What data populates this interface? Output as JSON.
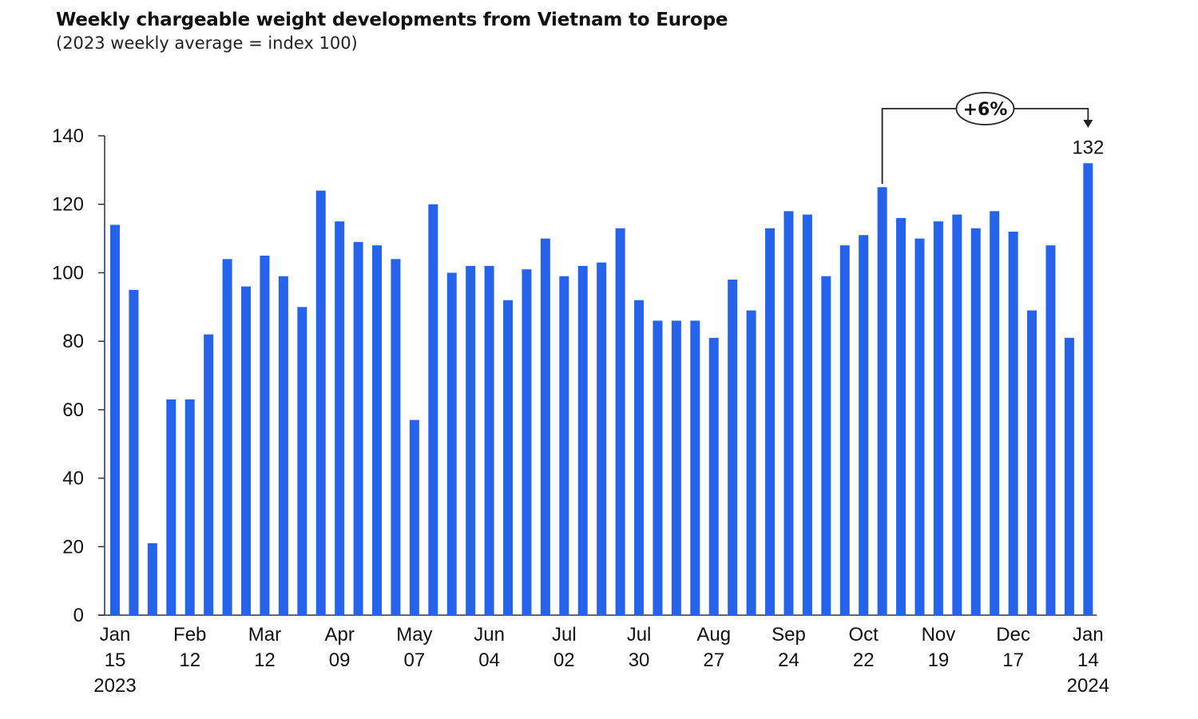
{
  "chart_data": {
    "type": "bar",
    "title": "Weekly chargeable weight developments from Vietnam to Europe",
    "subtitle": "(2023 weekly average = index 100)",
    "xlabel": "",
    "ylabel": "",
    "ylim": [
      0,
      140
    ],
    "yticks": [
      0,
      20,
      40,
      60,
      80,
      100,
      120,
      140
    ],
    "grid": false,
    "bar_color": "#2563eb",
    "values": [
      114,
      95,
      21,
      63,
      63,
      82,
      104,
      96,
      105,
      99,
      90,
      124,
      115,
      109,
      108,
      104,
      57,
      120,
      100,
      102,
      102,
      92,
      101,
      110,
      99,
      102,
      103,
      113,
      92,
      86,
      86,
      86,
      81,
      98,
      89,
      113,
      118,
      117,
      99,
      108,
      111,
      125,
      116,
      110,
      115,
      117,
      113,
      118,
      112,
      89,
      108,
      81,
      132
    ],
    "x_tick_labels": [
      {
        "index": 0,
        "lines": [
          "Jan",
          "15",
          "2023"
        ]
      },
      {
        "index": 4,
        "lines": [
          "Feb",
          "12"
        ]
      },
      {
        "index": 8,
        "lines": [
          "Mar",
          "12"
        ]
      },
      {
        "index": 12,
        "lines": [
          "Apr",
          "09"
        ]
      },
      {
        "index": 16,
        "lines": [
          "May",
          "07"
        ]
      },
      {
        "index": 20,
        "lines": [
          "Jun",
          "04"
        ]
      },
      {
        "index": 24,
        "lines": [
          "Jul",
          "02"
        ]
      },
      {
        "index": 28,
        "lines": [
          "Jul",
          "30"
        ]
      },
      {
        "index": 32,
        "lines": [
          "Aug",
          "27"
        ]
      },
      {
        "index": 36,
        "lines": [
          "Sep",
          "24"
        ]
      },
      {
        "index": 40,
        "lines": [
          "Oct",
          "22"
        ]
      },
      {
        "index": 44,
        "lines": [
          "Nov",
          "19"
        ]
      },
      {
        "index": 48,
        "lines": [
          "Dec",
          "17"
        ]
      },
      {
        "index": 52,
        "lines": [
          "Jan",
          "14",
          "2024"
        ]
      }
    ],
    "data_labels": [
      {
        "index": 52,
        "text": "132"
      }
    ],
    "annotations": [
      {
        "type": "bracket-arrow",
        "from_index": 41,
        "to_index": 52,
        "text": "+6%"
      }
    ]
  }
}
